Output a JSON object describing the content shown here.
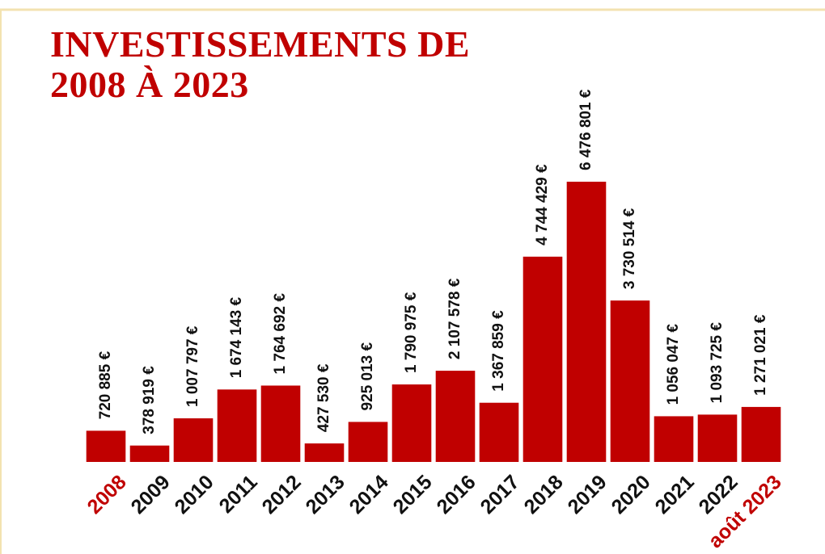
{
  "chart_data": {
    "type": "bar",
    "title": "INVESTISSEMENTS DE 2008 À 2023",
    "categories": [
      "2008",
      "2009",
      "2010",
      "2011",
      "2012",
      "2013",
      "2014",
      "2015",
      "2016",
      "2017",
      "2018",
      "2019",
      "2020",
      "2021",
      "2022",
      "août 2023"
    ],
    "values": [
      720885,
      378919,
      1007797,
      1674143,
      1764692,
      427530,
      925013,
      1790975,
      2107578,
      1367859,
      4744429,
      6476801,
      3730514,
      1056047,
      1093725,
      1271021
    ],
    "value_labels": [
      "720 885 €",
      "378 919 €",
      "1 007 797 €",
      "1 674 143 €",
      "1 764 692 €",
      "427 530 €",
      "925 013 €",
      "1 790 975 €",
      "2 107 578 €",
      "1 367 859 €",
      "4 744 429 €",
      "6 476 801 €",
      "3 730 514 €",
      "1 056 047 €",
      "1 093 725 €",
      "1 271 021 €"
    ],
    "color": "#c00000",
    "category_colors": [
      "#c00000",
      "#111111",
      "#111111",
      "#111111",
      "#111111",
      "#111111",
      "#111111",
      "#111111",
      "#111111",
      "#111111",
      "#111111",
      "#111111",
      "#111111",
      "#111111",
      "#111111",
      "#c00000"
    ]
  }
}
